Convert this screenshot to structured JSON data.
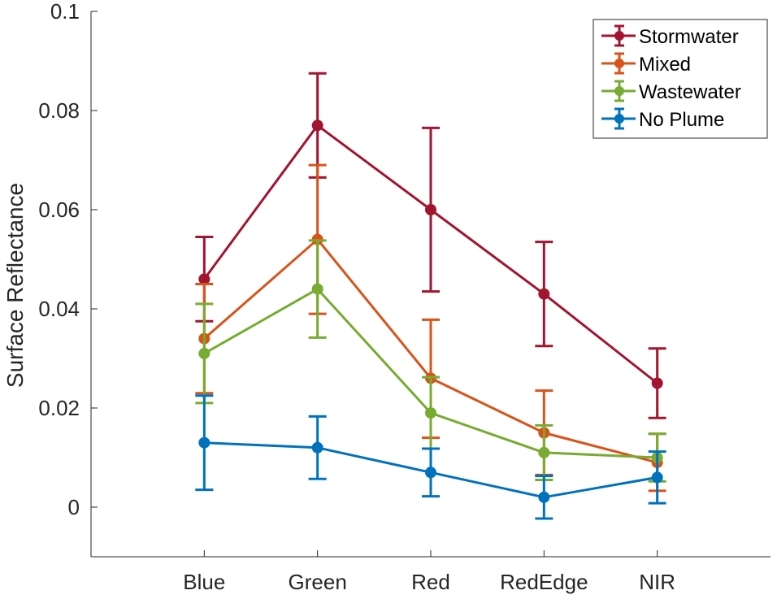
{
  "chart_data": {
    "type": "line",
    "title": "",
    "xlabel": "",
    "ylabel": "Surface Reflectance",
    "categories": [
      "Blue",
      "Green",
      "Red",
      "RedEdge",
      "NIR"
    ],
    "x_range": [
      0,
      6
    ],
    "ylim": [
      -0.01,
      0.1
    ],
    "yticks": [
      0,
      0.02,
      0.04,
      0.06,
      0.08,
      0.1
    ],
    "ytick_labels": [
      "0",
      "0.02",
      "0.04",
      "0.06",
      "0.08",
      "0.1"
    ],
    "grid": false,
    "legend_position": "top-right",
    "series": [
      {
        "name": "Stormwater",
        "color": "#a2142f",
        "values": [
          0.046,
          0.077,
          0.06,
          0.043,
          0.025
        ],
        "err_low": [
          0.0375,
          0.0665,
          0.0435,
          0.0325,
          0.018
        ],
        "err_high": [
          0.0545,
          0.0875,
          0.0765,
          0.0535,
          0.032
        ]
      },
      {
        "name": "Mixed",
        "color": "#d95319",
        "values": [
          0.034,
          0.054,
          0.026,
          0.015,
          0.009
        ],
        "err_low": [
          0.023,
          0.039,
          0.014,
          0.0065,
          0.0033
        ],
        "err_high": [
          0.045,
          0.069,
          0.0378,
          0.0235,
          0.0148
        ]
      },
      {
        "name": "Wastewater",
        "color": "#77ac30",
        "values": [
          0.031,
          0.044,
          0.019,
          0.011,
          0.01
        ],
        "err_low": [
          0.021,
          0.0342,
          0.0118,
          0.0055,
          0.0052
        ],
        "err_high": [
          0.041,
          0.0538,
          0.0262,
          0.0165,
          0.0148
        ]
      },
      {
        "name": "No Plume",
        "color": "#0072bd",
        "values": [
          0.013,
          0.012,
          0.007,
          0.002,
          0.006
        ],
        "err_low": [
          0.0035,
          0.0057,
          0.0022,
          -0.0023,
          0.0008
        ],
        "err_high": [
          0.0225,
          0.0183,
          0.0118,
          0.0063,
          0.0112
        ]
      }
    ]
  }
}
